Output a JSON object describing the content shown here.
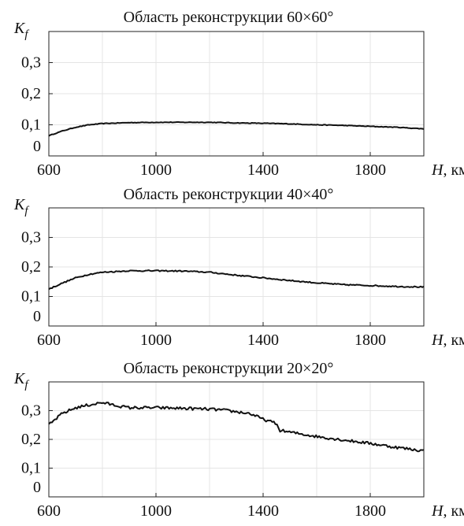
{
  "chart_data": [
    {
      "type": "line",
      "title": "Область реконструкции 60×60°",
      "ylabel": "K",
      "ylabel_sub": "f",
      "xlabel_var": "H",
      "xlabel_unit": ", км",
      "xlim": [
        600,
        2000
      ],
      "ylim": [
        0,
        0.4
      ],
      "xticks": [
        600,
        1000,
        1400,
        1800
      ],
      "xtick_labels": [
        "600",
        "1000",
        "1400",
        "1800"
      ],
      "yticks": [
        0,
        0.1,
        0.2,
        0.3
      ],
      "ytick_labels": [
        "0",
        "0,1",
        "0,2",
        "0,3"
      ],
      "grid": true,
      "noise": 0.001,
      "series": [
        {
          "x": [
            600,
            650,
            700,
            750,
            800,
            900,
            1000,
            1100,
            1200,
            1300,
            1400,
            1500,
            1600,
            1700,
            1800,
            1900,
            2000
          ],
          "y": [
            0.065,
            0.08,
            0.092,
            0.1,
            0.104,
            0.107,
            0.108,
            0.108,
            0.108,
            0.106,
            0.105,
            0.103,
            0.1,
            0.098,
            0.095,
            0.092,
            0.087
          ]
        }
      ]
    },
    {
      "type": "line",
      "title": "Область реконструкции 40×40°",
      "ylabel": "K",
      "ylabel_sub": "f",
      "xlabel_var": "H",
      "xlabel_unit": ", км",
      "xlim": [
        600,
        2000
      ],
      "ylim": [
        0,
        0.4
      ],
      "xticks": [
        600,
        1000,
        1400,
        1800
      ],
      "xtick_labels": [
        "600",
        "1000",
        "1400",
        "1800"
      ],
      "yticks": [
        0,
        0.1,
        0.2,
        0.3
      ],
      "ytick_labels": [
        "0",
        "0,1",
        "0,2",
        "0,3"
      ],
      "grid": true,
      "noise": 0.002,
      "series": [
        {
          "x": [
            600,
            650,
            700,
            750,
            800,
            900,
            1000,
            1100,
            1200,
            1300,
            1400,
            1500,
            1600,
            1700,
            1800,
            1900,
            2000
          ],
          "y": [
            0.125,
            0.145,
            0.163,
            0.175,
            0.182,
            0.187,
            0.187,
            0.186,
            0.182,
            0.172,
            0.163,
            0.154,
            0.146,
            0.14,
            0.137,
            0.134,
            0.132
          ]
        }
      ]
    },
    {
      "type": "line",
      "title": "Область реконструкции 20×20°",
      "ylabel": "K",
      "ylabel_sub": "f",
      "xlabel_var": "H",
      "xlabel_unit": ", км",
      "xlim": [
        600,
        2000
      ],
      "ylim": [
        0,
        0.4
      ],
      "xticks": [
        600,
        1000,
        1400,
        1800
      ],
      "xtick_labels": [
        "600",
        "1000",
        "1400",
        "1800"
      ],
      "yticks": [
        0,
        0.1,
        0.2,
        0.3
      ],
      "ytick_labels": [
        "0",
        "0,1",
        "0,2",
        "0,3"
      ],
      "grid": true,
      "noise": 0.005,
      "series": [
        {
          "x": [
            600,
            650,
            700,
            750,
            800,
            850,
            900,
            1000,
            1100,
            1200,
            1250,
            1300,
            1350,
            1400,
            1450,
            1460,
            1500,
            1600,
            1700,
            1800,
            1900,
            2000
          ],
          "y": [
            0.25,
            0.29,
            0.31,
            0.32,
            0.328,
            0.318,
            0.31,
            0.31,
            0.308,
            0.305,
            0.302,
            0.296,
            0.29,
            0.27,
            0.255,
            0.232,
            0.225,
            0.21,
            0.198,
            0.186,
            0.172,
            0.16
          ]
        }
      ]
    }
  ]
}
